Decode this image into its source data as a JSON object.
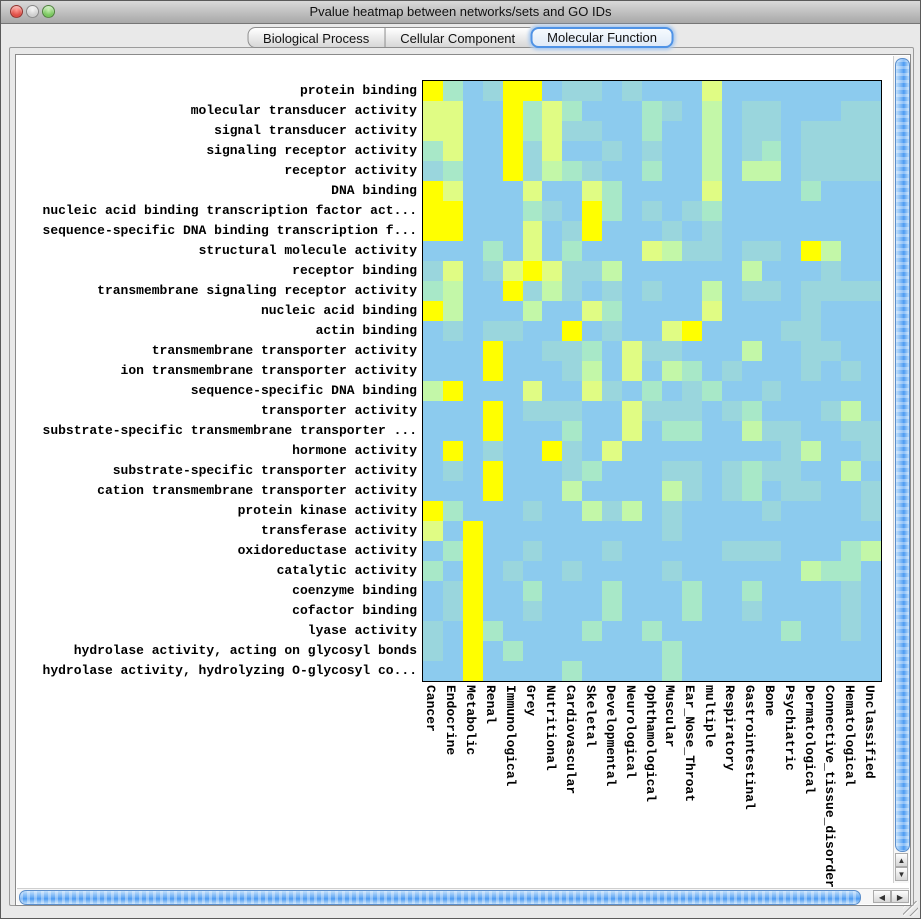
{
  "window": {
    "title": "Pvalue heatmap between networks/sets and GO IDs"
  },
  "colors": {
    "close_button": "#df4f47",
    "minimize_button": "#cfcfcf",
    "zoom_button": "#79c75e",
    "tab_selected_ring": "#4f93e6",
    "scrollbar_thumb": "#4d9bf2"
  },
  "tabs": [
    {
      "label": "Biological Process",
      "selected": false
    },
    {
      "label": "Cellular Component",
      "selected": false
    },
    {
      "label": "Molecular Function",
      "selected": true
    }
  ],
  "scrollbar_icons": {
    "up": "▲",
    "down": "▼",
    "left": "◀",
    "right": "▶"
  },
  "chart_data": {
    "type": "heatmap",
    "title": "Pvalue heatmap between networks/sets and GO IDs",
    "rows": [
      "protein binding",
      "molecular transducer activity",
      "signal transducer activity",
      "signaling receptor activity",
      "receptor activity",
      "DNA binding",
      "nucleic acid binding transcription factor act...",
      "sequence-specific DNA binding transcription f...",
      "structural molecule activity",
      "receptor binding",
      "transmembrane signaling receptor activity",
      "nucleic acid binding",
      "actin binding",
      "transmembrane transporter activity",
      "ion transmembrane transporter activity",
      "sequence-specific DNA binding",
      "transporter activity",
      "substrate-specific transmembrane transporter ...",
      "hormone activity",
      "substrate-specific transporter activity",
      "cation transmembrane transporter activity",
      "protein kinase activity",
      "transferase activity",
      "oxidoreductase activity",
      "catalytic activity",
      "coenzyme binding",
      "cofactor binding",
      "lyase activity",
      "hydrolase activity, acting on glycosyl bonds",
      "hydrolase activity, hydrolyzing O-glycosyl co..."
    ],
    "columns": [
      "Cancer",
      "Endocrine",
      "Metabolic",
      "Renal",
      "Immunological",
      "Grey",
      "Nutritional",
      "Cardiovascular",
      "Skeletal",
      "Developmental",
      "Neurological",
      "Ophthamological",
      "Muscular",
      "Ear_Nose_Throat",
      "multiple",
      "Respiratory",
      "Gastrointestinal",
      "Bone",
      "Psychiatric",
      "Dermatological",
      "Connective_tissue_disorder",
      "Hematological",
      "Unclassified"
    ],
    "palette": {
      "0": "#8ccbee",
      "1": "#9ad6dd",
      "2": "#a8e8c8",
      "3": "#c3f7a8",
      "4": "#e0fc84",
      "5": "#ffff00"
    },
    "palette_meaning": "0=low p-value intensity (blue) through 5=high (yellow)",
    "cells": [
      "52015501101000400000000",
      "44005242000210301100011",
      "44005241100200301101111",
      "24005140010100301201111",
      "12005132100200303301111",
      "54000400420000400002000",
      "55000210520101200000000",
      "55000401500010100000000",
      "00020402000431101105300",
      "14014541130000003000100",
      "23005131010100301101111",
      "53000300420000400001000",
      "01011005010045000011000",
      "00050011204110003001100",
      "00050001304032010001010",
      "35000400410201200100000",
      "00050111004111012000130",
      "00050002004022003110011",
      "05010051040000000013001",
      "01050001200011012110030",
      "00050003000031012011001",
      "52000100313010000100001",
      "40500000000010000000000",
      "02500100010000011100023",
      "20501001000010000003220",
      "01500200020002002000010",
      "01500100020002001000010",
      "10520000200200000020010",
      "10502000000020000000000",
      "00500002000020000000000"
    ]
  }
}
